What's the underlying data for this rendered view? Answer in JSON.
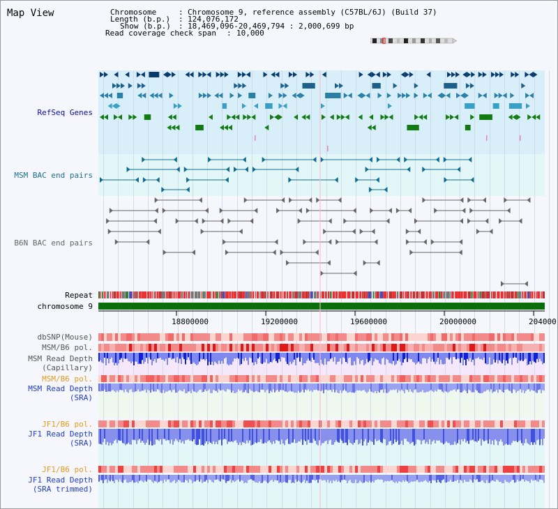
{
  "page": {
    "title": "Map View"
  },
  "info": {
    "chromosome_label": "Chromosome",
    "chromosome_value": "Chromosome 9, reference assembly (C57BL/6J) (Build 37)",
    "length_label": "Length (b.p.)",
    "length_value": "124,076,172",
    "show_label": "Show (b.p.)",
    "show_value": "18,469,096-20,469,794 : 2,000,699 bp",
    "coverage_label": "Read coverage check span",
    "coverage_value": "10,000"
  },
  "tracks": {
    "refseq": "RefSeq Genes",
    "msm_bac": "MSM BAC end pairs",
    "b6n_bac": "B6N BAC end pairs",
    "repeat": "Repeat",
    "chromosome": "chromosome 9",
    "dbsnp": "dbSNP(Mouse)",
    "msm_b6_pol": "MSM/B6 pol.",
    "msm_depth_cap_1": "MSM Read Depth",
    "msm_depth_cap_2": "(Capillary)",
    "msm_b6_pol_sra": "MSM/B6 pol.",
    "msm_depth_sra_1": "MSM Read Depth",
    "msm_depth_sra_2": "(SRA)",
    "jf1_b6_pol": "JF1/B6 pol.",
    "jf1_depth_sra_1": "JF1 Read Depth",
    "jf1_depth_sra_2": "(SRA)",
    "jf1_b6_pol_trim": "JF1/B6 pol.",
    "jf1_depth_trim_1": "JF1 Read Depth",
    "jf1_depth_trim_2": "(SRA trimmed)"
  },
  "axis": {
    "ticks": [
      "18800000",
      "19200000",
      "19600000",
      "20000000",
      "204000"
    ]
  },
  "colors": {
    "refseq_band": "#d8eef8",
    "bac_band": "#e3f7f9",
    "chrom_green": "#0b6e0b",
    "depth_blue": "#3040e0",
    "depth_light": "#8f98f0",
    "pol_red": "#e83030",
    "pol_light": "#f7c8c8"
  }
}
